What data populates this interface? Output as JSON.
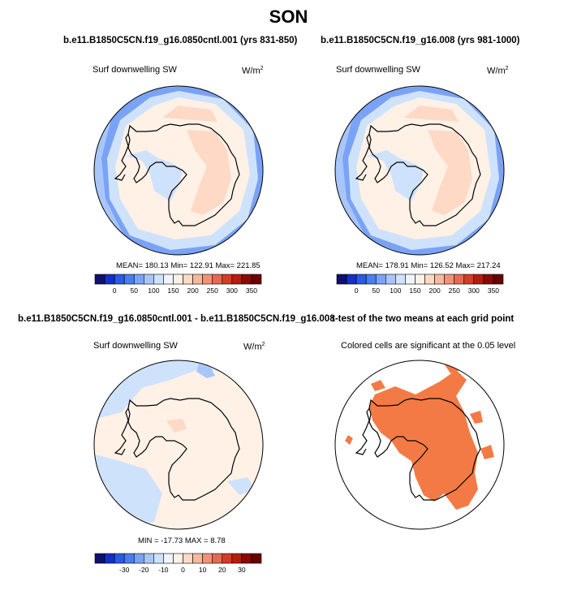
{
  "season": "SON",
  "panels": [
    {
      "title": "b.e11.B1850C5CN.f19_g16.0850cntl.001 (yrs 831-850)",
      "subtitle": "Surf downwelling SW",
      "units_base": "W/m",
      "units_exp": "2",
      "stats": "MEAN= 180.13  Min= 122.91  Max= 221.85"
    },
    {
      "title": "b.e11.B1850C5CN.f19_g16.008 (yrs 981-1000)",
      "subtitle": "Surf downwelling SW",
      "units_base": "W/m",
      "units_exp": "2",
      "stats": "MEAN= 178.91  Min= 126.52  Max= 217.24"
    },
    {
      "title": "b.e11.B1850C5CN.f19_g16.0850cntl.001 - b.e11.B1850C5CN.f19_g16.008",
      "subtitle": "Surf downwelling SW",
      "units_base": "W/m",
      "units_exp": "2",
      "stats": "MIN = -17.73  MAX =   8.78"
    },
    {
      "title": "t-test of the two means at each grid point",
      "subtitle": "Colored cells are significant at the 0.05 level"
    }
  ],
  "chart_data": [
    {
      "type": "heatmap",
      "projection": "polar-stereographic-south",
      "title": "b.e11.B1850C5CN.f19_g16.0850cntl.001 (yrs 831-850)",
      "variable": "Surf downwelling SW",
      "units": "W/m2",
      "mean": 180.13,
      "min": 122.91,
      "max": 221.85,
      "colorbar": {
        "labels": [
          "0",
          "50",
          "100",
          "150",
          "200",
          "250",
          "300",
          "350"
        ],
        "colors": [
          "#10106e",
          "#1530c8",
          "#2a5ae6",
          "#4a7ef0",
          "#7aa2f5",
          "#a8c6fa",
          "#cfe2fc",
          "#eef5ff",
          "#fff1e6",
          "#fdd9c6",
          "#f7b8a0",
          "#f0937a",
          "#e56a4f",
          "#d43d25",
          "#b81c0e",
          "#8a0b05",
          "#6a0000"
        ]
      }
    },
    {
      "type": "heatmap",
      "projection": "polar-stereographic-south",
      "title": "b.e11.B1850C5CN.f19_g16.008 (yrs 981-1000)",
      "variable": "Surf downwelling SW",
      "units": "W/m2",
      "mean": 178.91,
      "min": 126.52,
      "max": 217.24,
      "colorbar": {
        "labels": [
          "0",
          "50",
          "100",
          "150",
          "200",
          "250",
          "300",
          "350"
        ],
        "colors": [
          "#10106e",
          "#1530c8",
          "#2a5ae6",
          "#4a7ef0",
          "#7aa2f5",
          "#a8c6fa",
          "#cfe2fc",
          "#eef5ff",
          "#fff1e6",
          "#fdd9c6",
          "#f7b8a0",
          "#f0937a",
          "#e56a4f",
          "#d43d25",
          "#b81c0e",
          "#8a0b05",
          "#6a0000"
        ]
      }
    },
    {
      "type": "heatmap",
      "projection": "polar-stereographic-south",
      "title": "b.e11.B1850C5CN.f19_g16.0850cntl.001 - b.e11.B1850C5CN.f19_g16.008",
      "variable": "Surf downwelling SW",
      "units": "W/m2",
      "min": -17.73,
      "max": 8.78,
      "colorbar": {
        "labels": [
          "-30",
          "-20",
          "-10",
          "0",
          "10",
          "20",
          "30"
        ],
        "colors": [
          "#10106e",
          "#1530c8",
          "#2a5ae6",
          "#4a7ef0",
          "#7aa2f5",
          "#a8c6fa",
          "#cfe2fc",
          "#eef5ff",
          "#fff1e6",
          "#fdd9c6",
          "#f7b8a0",
          "#f0937a",
          "#e56a4f",
          "#d43d25",
          "#b81c0e",
          "#8a0b05",
          "#6a0000"
        ]
      }
    },
    {
      "type": "heatmap",
      "projection": "polar-stereographic-south",
      "title": "t-test of the two means at each grid point",
      "note": "Colored cells are significant at the 0.05 level",
      "significant_color": "#f47a45"
    }
  ]
}
